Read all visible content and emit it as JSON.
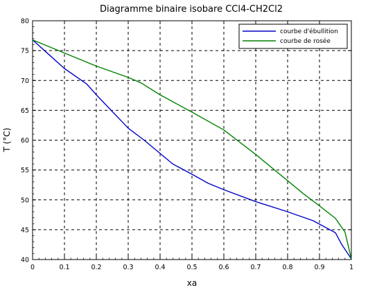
{
  "chart_data": {
    "type": "line",
    "title": "Diagramme binaire isobare CCl4-CH2Cl2",
    "xlabel": "xa",
    "ylabel": "T (°C)",
    "xlim": [
      0,
      1
    ],
    "ylim": [
      40,
      80
    ],
    "x_ticks": [
      "0",
      "0.1",
      "0.2",
      "0.3",
      "0.4",
      "0.5",
      "0.6",
      "0.7",
      "0.8",
      "0.9",
      "1"
    ],
    "y_ticks": [
      "40",
      "45",
      "50",
      "55",
      "60",
      "65",
      "70",
      "75",
      "80"
    ],
    "grid": true,
    "grid_style": "dashed",
    "legend_position": "top-right",
    "series": [
      {
        "name": "courbe d'ébullition",
        "color": "#0000c8",
        "points": [
          [
            0,
            76.8
          ],
          [
            0.05,
            74.4
          ],
          [
            0.1,
            72.0
          ],
          [
            0.17,
            69.4
          ],
          [
            0.2,
            67.6
          ],
          [
            0.3,
            62.0
          ],
          [
            0.35,
            60.0
          ],
          [
            0.44,
            56.0
          ],
          [
            0.5,
            54.3
          ],
          [
            0.55,
            52.8
          ],
          [
            0.6,
            51.7
          ],
          [
            0.7,
            49.7
          ],
          [
            0.8,
            48.0
          ],
          [
            0.88,
            46.5
          ],
          [
            0.95,
            44.5
          ],
          [
            0.97,
            42.5
          ],
          [
            1.0,
            40.1
          ]
        ]
      },
      {
        "name": "courbe de rosée",
        "color": "#008000",
        "points": [
          [
            0,
            76.8
          ],
          [
            0.1,
            74.6
          ],
          [
            0.2,
            72.4
          ],
          [
            0.3,
            70.5
          ],
          [
            0.34,
            69.6
          ],
          [
            0.4,
            67.6
          ],
          [
            0.5,
            64.7
          ],
          [
            0.6,
            61.7
          ],
          [
            0.7,
            57.6
          ],
          [
            0.8,
            53.2
          ],
          [
            0.85,
            51.0
          ],
          [
            0.9,
            49.0
          ],
          [
            0.95,
            46.9
          ],
          [
            0.98,
            44.6
          ],
          [
            1.0,
            40.1
          ]
        ]
      }
    ]
  }
}
